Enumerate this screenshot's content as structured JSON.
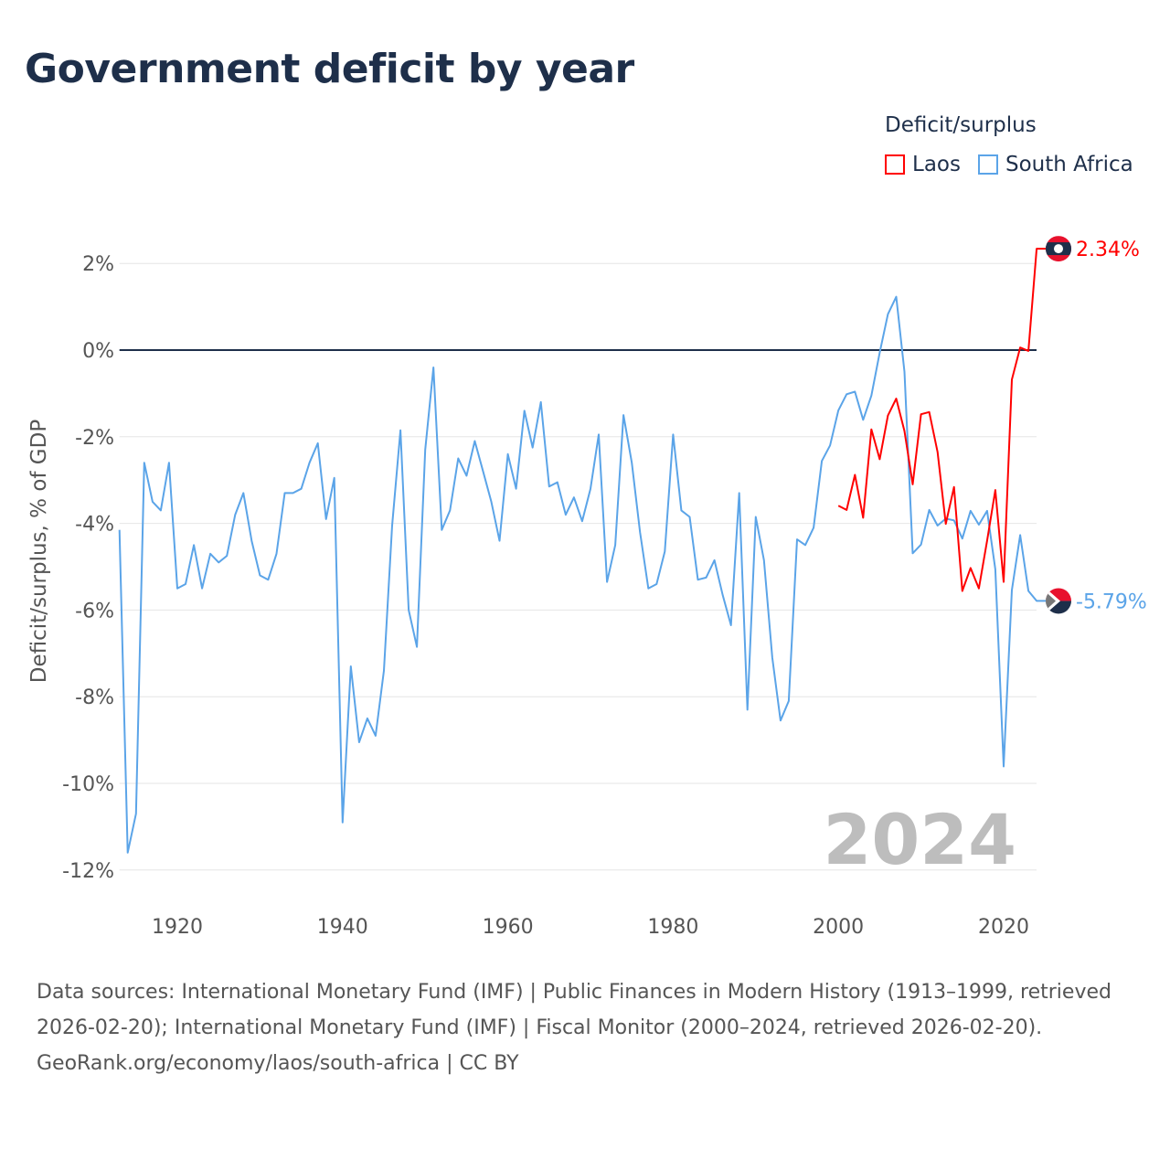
{
  "chart_data": {
    "type": "line",
    "title": "Government deficit by year",
    "ylabel": "Deficit/surplus, % of GDP",
    "xlabel": "",
    "xlim": [
      1913,
      2024
    ],
    "ylim": [
      -12.5,
      2.5
    ],
    "x_ticks": [
      1920,
      1940,
      1960,
      1980,
      2000,
      2020
    ],
    "y_ticks": [
      2,
      0,
      -2,
      -4,
      -6,
      -8,
      -10,
      -12
    ],
    "y_tick_labels": [
      "2%",
      "0%",
      "-2%",
      "-4%",
      "-6%",
      "-8%",
      "-10%",
      "-12%"
    ],
    "x_tick_labels": [
      "1920",
      "1940",
      "1960",
      "1980",
      "2000",
      "2020"
    ],
    "grid": true,
    "legend_title": "Deficit/surplus",
    "legend_position": "top-right",
    "year_watermark": "2024",
    "series": [
      {
        "name": "Laos",
        "color": "#ff0000",
        "end_label": "2.34%",
        "start_year": 2000,
        "values": [
          -3.59,
          -3.69,
          -2.88,
          -3.87,
          -1.83,
          -2.52,
          -1.51,
          -1.12,
          -1.87,
          -3.1,
          -1.48,
          -1.43,
          -2.35,
          -4.01,
          -3.16,
          -5.56,
          -5.03,
          -5.5,
          -4.4,
          -3.23,
          -5.35,
          -0.68,
          0.06,
          -0.02,
          2.34
        ]
      },
      {
        "name": "South Africa",
        "color": "#5ba4e8",
        "end_label": "-5.79%",
        "start_year": 1913,
        "values": [
          -4.15,
          -11.6,
          -10.7,
          -2.6,
          -3.5,
          -3.7,
          -2.6,
          -5.5,
          -5.4,
          -4.5,
          -5.5,
          -4.7,
          -4.9,
          -4.75,
          -3.8,
          -3.3,
          -4.4,
          -5.2,
          -5.3,
          -4.7,
          -3.3,
          -3.3,
          -3.2,
          -2.6,
          -2.15,
          -3.9,
          -2.95,
          -10.9,
          -7.3,
          -9.05,
          -8.5,
          -8.9,
          -7.4,
          -4.05,
          -1.85,
          -6.0,
          -6.85,
          -2.3,
          -0.4,
          -4.15,
          -3.7,
          -2.5,
          -2.9,
          -2.1,
          -2.8,
          -3.5,
          -4.4,
          -2.4,
          -3.2,
          -1.4,
          -2.25,
          -1.2,
          -3.15,
          -3.05,
          -3.8,
          -3.4,
          -3.95,
          -3.2,
          -1.95,
          -5.35,
          -4.5,
          -1.5,
          -2.6,
          -4.2,
          -5.5,
          -5.4,
          -4.65,
          -1.95,
          -3.7,
          -3.85,
          -5.3,
          -5.25,
          -4.85,
          -5.65,
          -6.35,
          -3.3,
          -8.3,
          -3.85,
          -4.85,
          -7.1,
          -8.55,
          -8.1,
          -4.37,
          -4.5,
          -4.1,
          -2.56,
          -2.2,
          -1.39,
          -1.02,
          -0.96,
          -1.61,
          -1.05,
          -0.06,
          0.83,
          1.23,
          -0.5,
          -4.69,
          -4.49,
          -3.69,
          -4.05,
          -3.89,
          -3.93,
          -4.35,
          -3.71,
          -4.03,
          -3.71,
          -5.06,
          -9.61,
          -5.54,
          -4.27,
          -5.56,
          -5.79
        ]
      }
    ]
  },
  "footer": {
    "sources": "Data sources: International Monetary Fund (IMF) | Public Finances in Modern History (1913–1999, retrieved 2026-02-20); International Monetary Fund (IMF) | Fiscal Monitor (2000–2024, retrieved 2026-02-20).",
    "credit": "GeoRank.org/economy/laos/south-africa | CC BY"
  },
  "flags": {
    "laos": "laos-flag-icon",
    "south_africa": "south-africa-flag-icon"
  }
}
